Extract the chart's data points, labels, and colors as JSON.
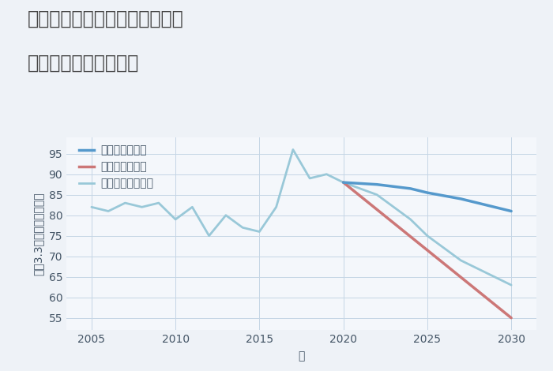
{
  "title_line1": "兵庫県たつの市揖保川町野田の",
  "title_line2": "中古戸建ての価格推移",
  "xlabel": "年",
  "ylabel": "坪（3.3㎡）単価（万円）",
  "background_color": "#eef2f7",
  "plot_bg_color": "#f4f7fb",
  "grid_color": "#c5d5e5",
  "legend_labels": [
    "グッドシナリオ",
    "バッドシナリオ",
    "ノーマルシナリオ"
  ],
  "good_color": "#5599cc",
  "bad_color": "#cc7777",
  "normal_color": "#99c8d8",
  "historical_years": [
    2005,
    2006,
    2007,
    2008,
    2009,
    2010,
    2011,
    2012,
    2013,
    2014,
    2015,
    2016,
    2017,
    2018,
    2019,
    2020
  ],
  "historical_values": [
    82,
    81,
    83,
    82,
    83,
    79,
    82,
    75,
    80,
    77,
    76,
    82,
    96,
    89,
    90,
    88
  ],
  "good_future_years": [
    2020,
    2022,
    2024,
    2025,
    2027,
    2030
  ],
  "good_future_values": [
    88,
    87.5,
    86.5,
    85.5,
    84,
    81
  ],
  "bad_future_years": [
    2020,
    2030
  ],
  "bad_future_values": [
    88,
    55
  ],
  "normal_future_years": [
    2020,
    2022,
    2024,
    2025,
    2027,
    2030
  ],
  "normal_future_values": [
    88,
    85,
    79,
    75,
    69,
    63
  ],
  "ylim": [
    52,
    99
  ],
  "yticks": [
    55,
    60,
    65,
    70,
    75,
    80,
    85,
    90,
    95
  ],
  "xticks": [
    2005,
    2010,
    2015,
    2020,
    2025,
    2030
  ],
  "xlim": [
    2003.5,
    2031.5
  ],
  "title_fontsize": 17,
  "legend_fontsize": 10,
  "axis_label_fontsize": 10,
  "tick_fontsize": 10
}
